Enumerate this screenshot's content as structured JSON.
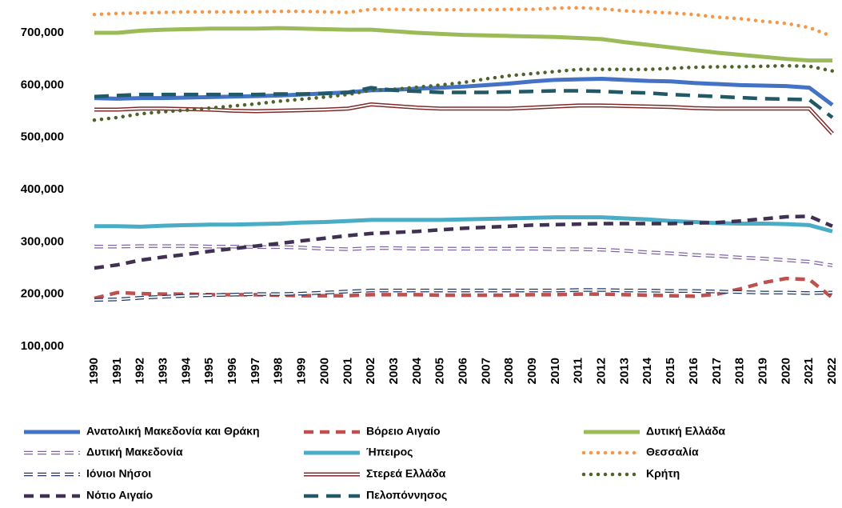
{
  "chart_data": {
    "type": "line",
    "categories": [
      "1990",
      "1991",
      "1992",
      "1993",
      "1994",
      "1995",
      "1996",
      "1997",
      "1998",
      "1999",
      "2000",
      "2001",
      "2002",
      "2003",
      "2004",
      "2005",
      "2006",
      "2007",
      "2008",
      "2009",
      "2010",
      "2011",
      "2012",
      "2013",
      "2014",
      "2015",
      "2016",
      "2017",
      "2018",
      "2019",
      "2020",
      "2021",
      "2022"
    ],
    "ylim": [
      100000,
      800000
    ],
    "yticks": [
      {
        "value": 100000,
        "label": "100,000"
      },
      {
        "value": 200000,
        "label": "200,000"
      },
      {
        "value": 300000,
        "label": "300,000"
      },
      {
        "value": 400000,
        "label": "400,000"
      },
      {
        "value": 500000,
        "label": "500,000"
      },
      {
        "value": 600000,
        "label": "600,000"
      },
      {
        "value": 700000,
        "label": "700,000"
      }
    ],
    "grid": false,
    "series": [
      {
        "name": "Ανατολική Μακεδονία και Θράκη",
        "color": "#4472c4",
        "style": "solid",
        "values": [
          575000,
          574000,
          575000,
          575000,
          576000,
          577000,
          578000,
          579000,
          580000,
          582000,
          584000,
          586000,
          590000,
          591000,
          593000,
          595000,
          597000,
          600000,
          603000,
          607000,
          610000,
          611000,
          612000,
          610000,
          608000,
          607000,
          604000,
          602000,
          600000,
          599000,
          598000,
          595000,
          562000
        ]
      },
      {
        "name": "Βόρειο Αιγαίο",
        "color": "#c0504d",
        "style": "dashed",
        "values": [
          192000,
          203000,
          201000,
          200000,
          200000,
          199000,
          199000,
          199000,
          198000,
          197000,
          197000,
          197000,
          199000,
          199000,
          199000,
          198000,
          198000,
          198000,
          198000,
          199000,
          199000,
          200000,
          200000,
          199000,
          198000,
          197000,
          196000,
          200000,
          210000,
          222000,
          230000,
          228000,
          193000
        ]
      },
      {
        "name": "Δυτική Ελλάδα",
        "color": "#9bbb59",
        "style": "solid",
        "values": [
          700000,
          700000,
          704000,
          706000,
          707000,
          708000,
          708000,
          708000,
          709000,
          708000,
          707000,
          706000,
          706000,
          703000,
          700000,
          698000,
          696000,
          695000,
          694000,
          693000,
          692000,
          690000,
          688000,
          682000,
          677000,
          672000,
          667000,
          662000,
          658000,
          654000,
          650000,
          647000,
          647000
        ]
      },
      {
        "name": "Δυτική Μακεδονία",
        "color": "#8064a2",
        "style": "outline",
        "values": [
          291000,
          291000,
          292000,
          292000,
          292000,
          291000,
          291000,
          290000,
          290000,
          289000,
          287000,
          286000,
          288000,
          288000,
          287000,
          287000,
          287000,
          287000,
          287000,
          287000,
          286000,
          286000,
          285000,
          283000,
          280000,
          278000,
          275000,
          273000,
          270000,
          268000,
          265000,
          262000,
          255000
        ]
      },
      {
        "name": "Ήπειρος",
        "color": "#4bacc6",
        "style": "solid",
        "values": [
          330000,
          330000,
          329000,
          331000,
          332000,
          333000,
          333000,
          334000,
          335000,
          337000,
          338000,
          340000,
          342000,
          342000,
          342000,
          342000,
          343000,
          344000,
          345000,
          346000,
          347000,
          347000,
          347000,
          345000,
          343000,
          340000,
          338000,
          336000,
          335000,
          335000,
          334000,
          332000,
          320000
        ]
      },
      {
        "name": "Θεσσαλία",
        "color": "#f79646",
        "style": "dotted",
        "values": [
          735000,
          737000,
          738000,
          739000,
          740000,
          740000,
          740000,
          740000,
          741000,
          741000,
          740000,
          739000,
          745000,
          745000,
          744000,
          744000,
          744000,
          744000,
          745000,
          745000,
          747000,
          748000,
          746000,
          742000,
          740000,
          738000,
          735000,
          730000,
          727000,
          722000,
          718000,
          710000,
          693000
        ]
      },
      {
        "name": "Ιόνιοι Νήσοι",
        "color": "#1f3864",
        "style": "outline",
        "values": [
          189000,
          190000,
          193000,
          195000,
          197000,
          198000,
          199000,
          200000,
          200000,
          201000,
          203000,
          205000,
          207000,
          207000,
          207000,
          207000,
          207000,
          207000,
          207000,
          207000,
          207000,
          208000,
          208000,
          207000,
          207000,
          206000,
          206000,
          205000,
          204000,
          203000,
          203000,
          202000,
          203000
        ]
      },
      {
        "name": "Στερεά Ελλάδα",
        "color": "#7f2a2a",
        "style": "double",
        "values": [
          553000,
          553000,
          555000,
          555000,
          554000,
          553000,
          551000,
          550000,
          551000,
          552000,
          553000,
          555000,
          563000,
          560000,
          557000,
          555000,
          555000,
          555000,
          555000,
          557000,
          559000,
          561000,
          561000,
          560000,
          559000,
          558000,
          556000,
          555000,
          555000,
          555000,
          555000,
          555000,
          507000
        ]
      },
      {
        "name": "Κρήτη",
        "color": "#4f6228",
        "style": "dotted",
        "values": [
          533000,
          538000,
          545000,
          549000,
          552000,
          556000,
          560000,
          564000,
          569000,
          573000,
          577000,
          582000,
          590000,
          592000,
          596000,
          600000,
          605000,
          612000,
          618000,
          622000,
          626000,
          630000,
          630000,
          630000,
          630000,
          632000,
          634000,
          635000,
          635000,
          636000,
          637000,
          636000,
          627000
        ]
      },
      {
        "name": "Νότιο Αιγαίο",
        "color": "#403152",
        "style": "dashed",
        "values": [
          250000,
          256000,
          265000,
          271000,
          276000,
          282000,
          287000,
          292000,
          297000,
          302000,
          307000,
          312000,
          316000,
          318000,
          320000,
          323000,
          326000,
          328000,
          330000,
          332000,
          333000,
          334000,
          335000,
          335000,
          335000,
          335000,
          336000,
          337000,
          340000,
          344000,
          348000,
          349000,
          330000
        ]
      },
      {
        "name": "Πελοπόννησος",
        "color": "#215967",
        "style": "longdash",
        "values": [
          578000,
          580000,
          582000,
          582000,
          582000,
          582000,
          582000,
          582000,
          583000,
          583000,
          584000,
          586000,
          595000,
          590000,
          588000,
          586000,
          586000,
          586000,
          587000,
          588000,
          589000,
          589000,
          588000,
          586000,
          585000,
          582000,
          580000,
          578000,
          576000,
          574000,
          573000,
          572000,
          538000
        ]
      }
    ]
  }
}
